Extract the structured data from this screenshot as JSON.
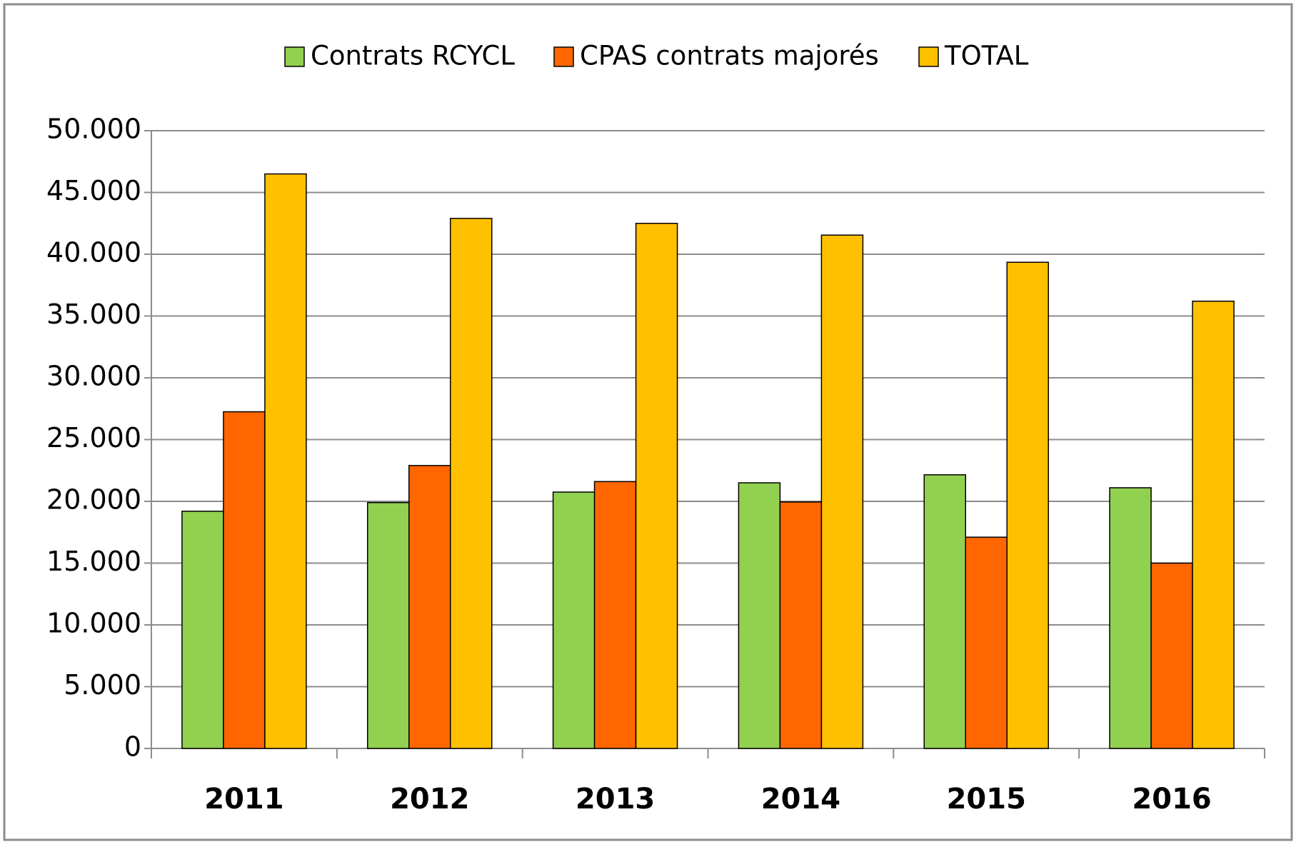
{
  "chart_data": {
    "type": "bar",
    "categories": [
      "2011",
      "2012",
      "2013",
      "2014",
      "2015",
      "2016"
    ],
    "series": [
      {
        "name": "Contrats RCYCL",
        "color": "#92d050",
        "values": [
          19200,
          19900,
          20750,
          21500,
          22150,
          21100
        ]
      },
      {
        "name": "CPAS contrats majorés",
        "color": "#ff6600",
        "values": [
          27250,
          22900,
          21600,
          19950,
          17100,
          15000
        ]
      },
      {
        "name": "TOTAL",
        "color": "#ffc000",
        "values": [
          46500,
          42900,
          42500,
          41550,
          39350,
          36200
        ]
      }
    ],
    "ylim": [
      0,
      50000
    ],
    "yticks": [
      0,
      {
        "value": 5000,
        "label": "5.000"
      },
      {
        "value": 10000,
        "label": "10.000"
      },
      {
        "value": 15000,
        "label": "15.000"
      },
      {
        "value": 20000,
        "label": "20.000"
      },
      {
        "value": 25000,
        "label": "25.000"
      },
      {
        "value": 30000,
        "label": "30.000"
      },
      {
        "value": 35000,
        "label": "35.000"
      },
      {
        "value": 40000,
        "label": "40.000"
      },
      {
        "value": 45000,
        "label": "45.000"
      },
      {
        "value": 50000,
        "label": "50.000"
      }
    ],
    "grid": true,
    "legend": "top"
  }
}
